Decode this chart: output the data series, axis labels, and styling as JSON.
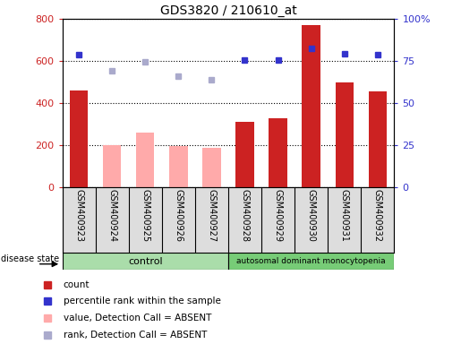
{
  "title": "GDS3820 / 210610_at",
  "samples": [
    "GSM400923",
    "GSM400924",
    "GSM400925",
    "GSM400926",
    "GSM400927",
    "GSM400928",
    "GSM400929",
    "GSM400930",
    "GSM400931",
    "GSM400932"
  ],
  "count_values": [
    460,
    null,
    null,
    null,
    null,
    310,
    330,
    770,
    500,
    455
  ],
  "count_absent": [
    null,
    200,
    260,
    195,
    190,
    null,
    null,
    null,
    null,
    null
  ],
  "rank_present": [
    78.75,
    null,
    null,
    null,
    null,
    75.6,
    75.6,
    82.5,
    79.4,
    78.75
  ],
  "rank_absent": [
    null,
    69.4,
    74.4,
    66.25,
    63.75,
    null,
    null,
    null,
    null,
    null
  ],
  "ylim_left": [
    0,
    800
  ],
  "ylim_right": [
    0,
    100
  ],
  "yticks_left": [
    0,
    200,
    400,
    600,
    800
  ],
  "yticks_right": [
    0,
    25,
    50,
    75,
    100
  ],
  "yticklabels_right": [
    "0",
    "25",
    "50",
    "75",
    "100%"
  ],
  "count_color": "#cc2222",
  "count_absent_color": "#ffaaaa",
  "rank_present_color": "#3333cc",
  "rank_absent_color": "#aaaacc",
  "control_color": "#aaddaa",
  "disease_color": "#77cc77",
  "control_label": "control",
  "disease_label": "autosomal dominant monocytopenia",
  "legend_items": [
    {
      "label": "count",
      "color": "#cc2222",
      "marker": "s"
    },
    {
      "label": "percentile rank within the sample",
      "color": "#3333cc",
      "marker": "s"
    },
    {
      "label": "value, Detection Call = ABSENT",
      "color": "#ffaaaa",
      "marker": "s"
    },
    {
      "label": "rank, Detection Call = ABSENT",
      "color": "#aaaacc",
      "marker": "s"
    }
  ],
  "cell_bg": "#dddddd",
  "grid_color": "#000000",
  "fig_width": 5.15,
  "fig_height": 3.84,
  "dpi": 100
}
